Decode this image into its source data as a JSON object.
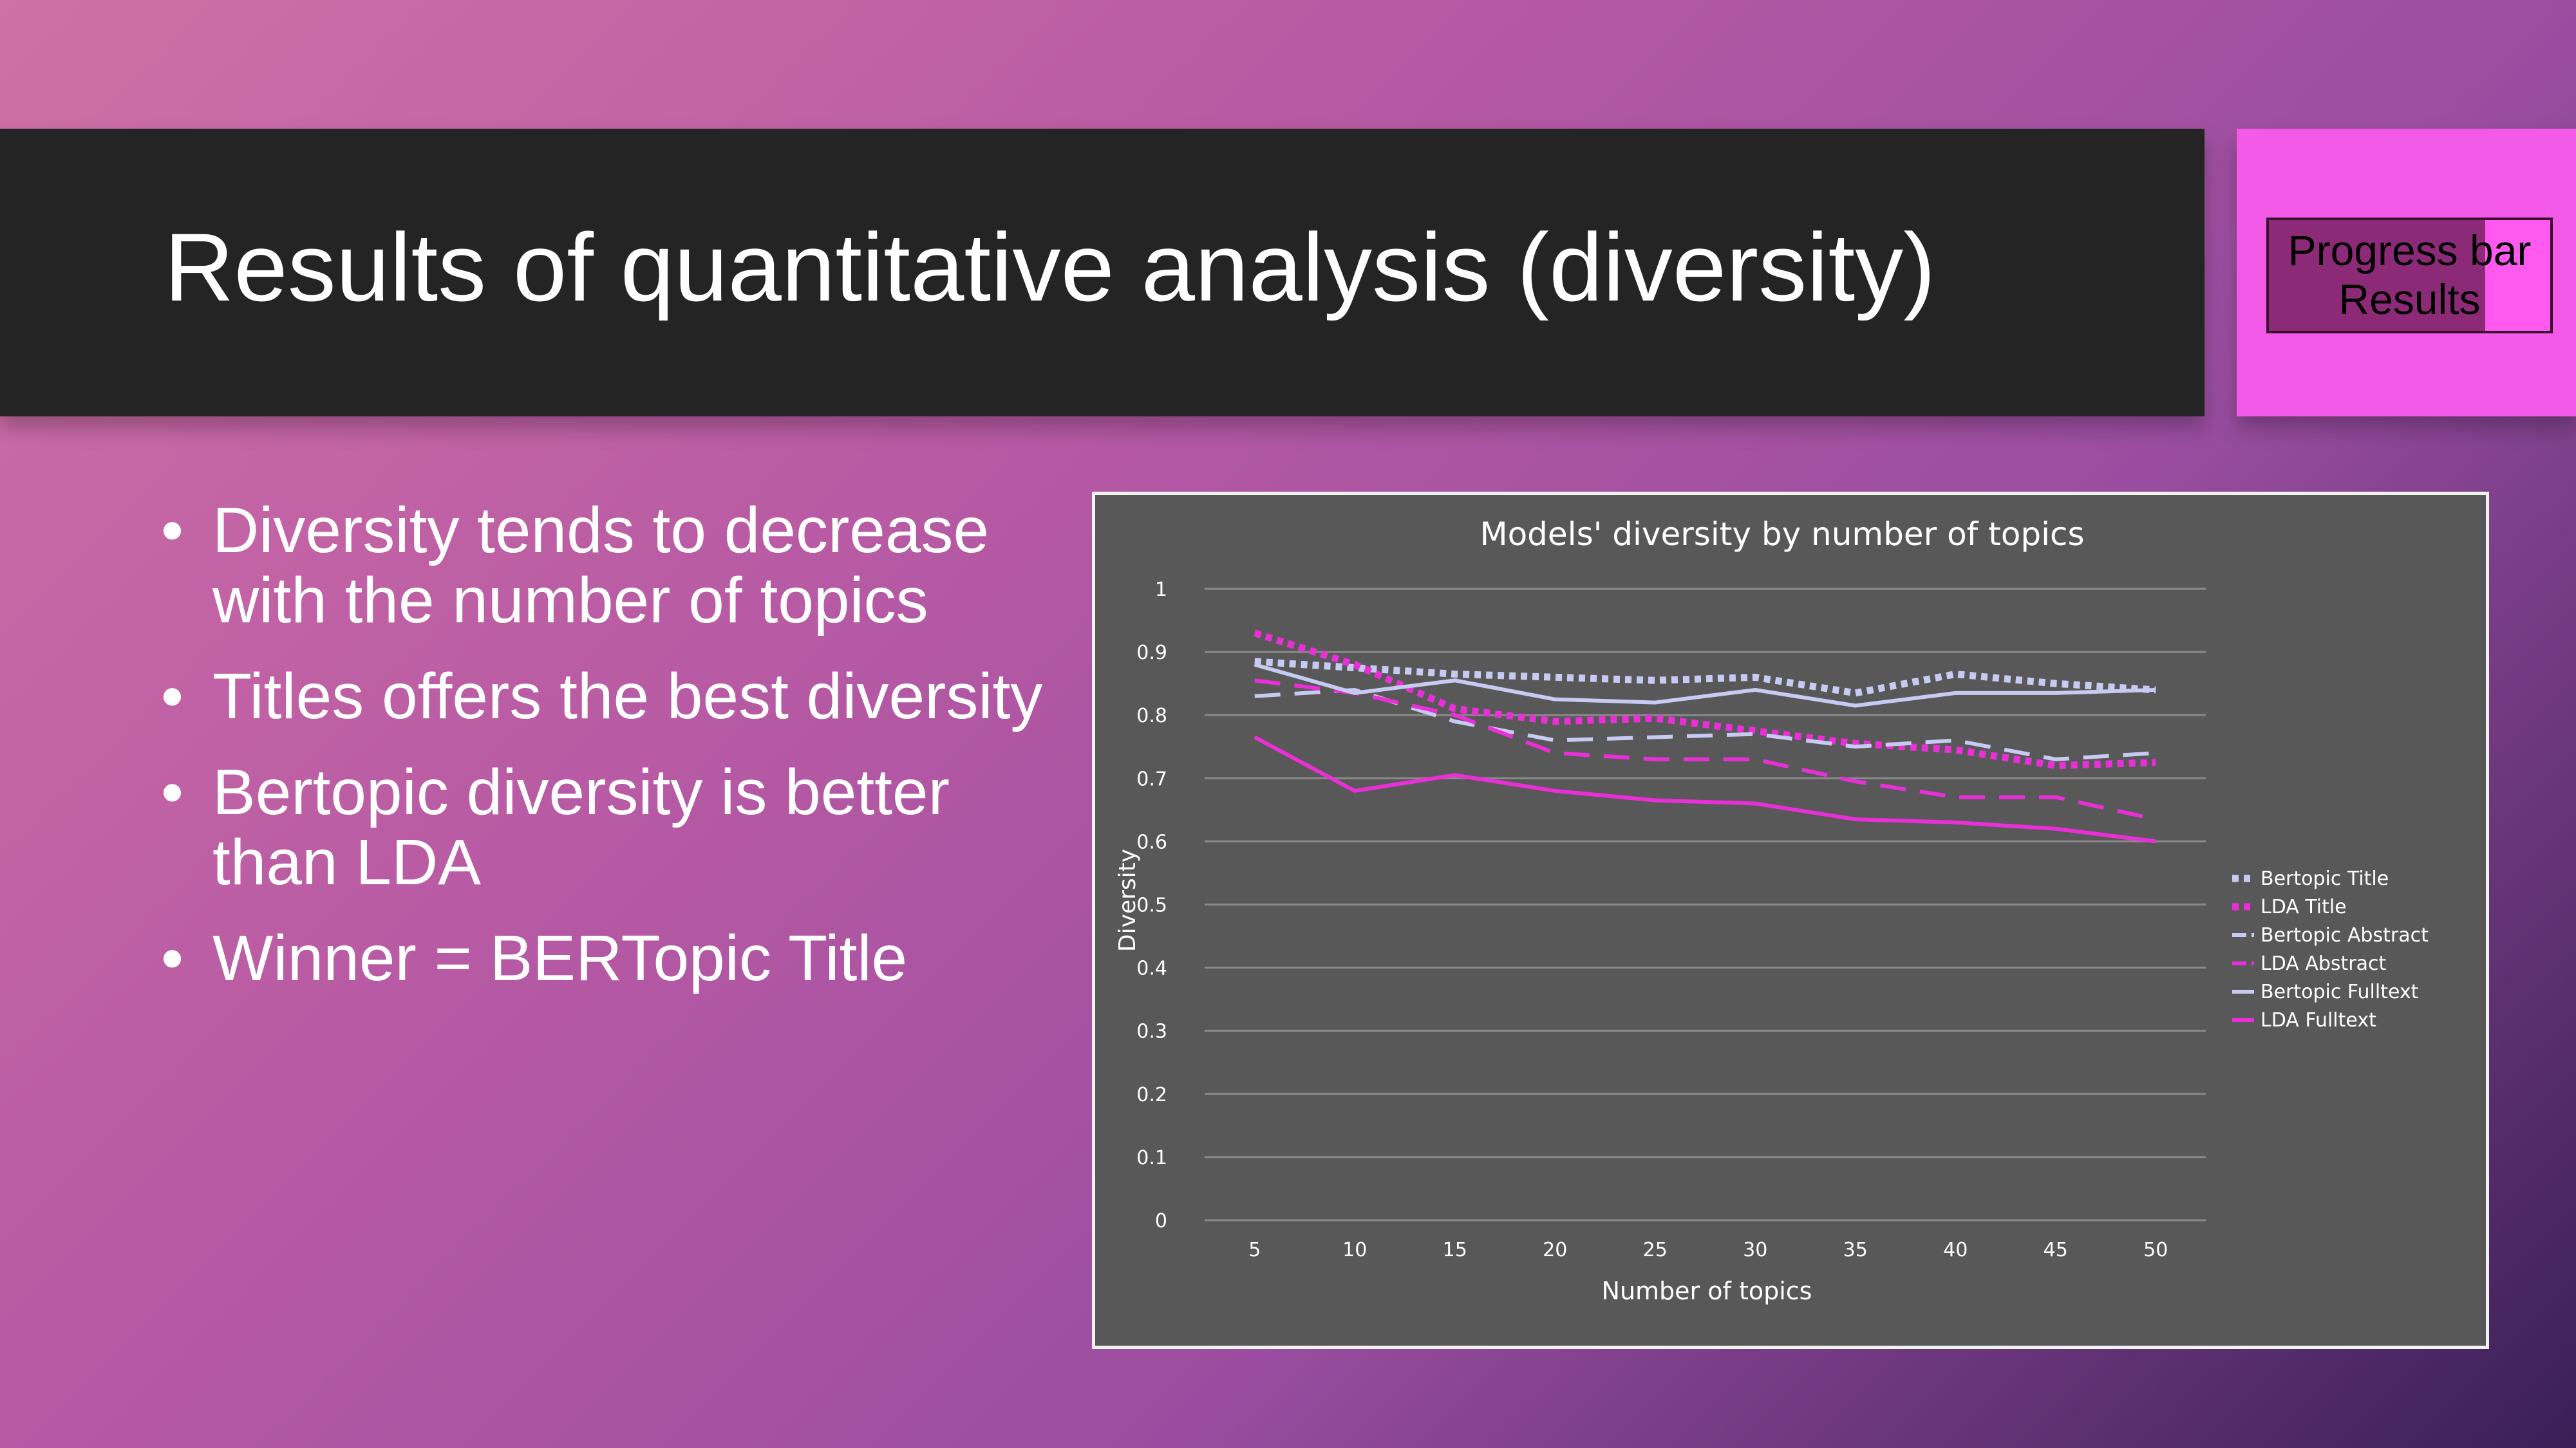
{
  "slide": {
    "title": "Results of quantitative analysis (diversity)",
    "progress": {
      "line1": "Progress bar",
      "line2": "Results",
      "fill": 0.77
    },
    "bullets": [
      "Diversity tends to decrease with the number of topics",
      "Titles offers the best diversity",
      "Bertopic diversity is better than LDA",
      "Winner = BERTopic Title"
    ]
  },
  "chart_data": {
    "type": "line",
    "title": "Models' diversity by number of topics",
    "xlabel": "Number of topics",
    "ylabel": "Diversity",
    "x": [
      5,
      10,
      15,
      20,
      25,
      30,
      35,
      40,
      45,
      50
    ],
    "ylim": [
      0,
      1
    ],
    "yticks": [
      "0",
      "0.1",
      "0.2",
      "0.3",
      "0.4",
      "0.5",
      "0.6",
      "0.7",
      "0.8",
      "0.9",
      "1"
    ],
    "grid": true,
    "legend_position": "right",
    "series": [
      {
        "name": "Bertopic Title",
        "color": "#c7caf2",
        "dash": "dotted",
        "values": [
          0.885,
          0.875,
          0.865,
          0.86,
          0.855,
          0.86,
          0.835,
          0.865,
          0.85,
          0.84
        ]
      },
      {
        "name": "LDA Title",
        "color": "#ea2fd8",
        "dash": "dotted",
        "values": [
          0.93,
          0.88,
          0.81,
          0.79,
          0.795,
          0.775,
          0.755,
          0.745,
          0.72,
          0.725
        ]
      },
      {
        "name": "Bertopic Abstract",
        "color": "#c7caf2",
        "dash": "dashed",
        "values": [
          0.83,
          0.84,
          0.79,
          0.76,
          0.765,
          0.77,
          0.75,
          0.76,
          0.73,
          0.74
        ]
      },
      {
        "name": "LDA Abstract",
        "color": "#ea2fd8",
        "dash": "dashed",
        "values": [
          0.855,
          0.835,
          0.8,
          0.74,
          0.73,
          0.73,
          0.695,
          0.67,
          0.67,
          0.635
        ]
      },
      {
        "name": "Bertopic Fulltext",
        "color": "#c7caf2",
        "dash": "solid",
        "values": [
          0.88,
          0.835,
          0.855,
          0.825,
          0.82,
          0.84,
          0.815,
          0.835,
          0.835,
          0.84
        ]
      },
      {
        "name": "LDA Fulltext",
        "color": "#ea2fd8",
        "dash": "solid",
        "values": [
          0.765,
          0.68,
          0.705,
          0.68,
          0.665,
          0.66,
          0.635,
          0.63,
          0.62,
          0.6
        ]
      }
    ]
  }
}
